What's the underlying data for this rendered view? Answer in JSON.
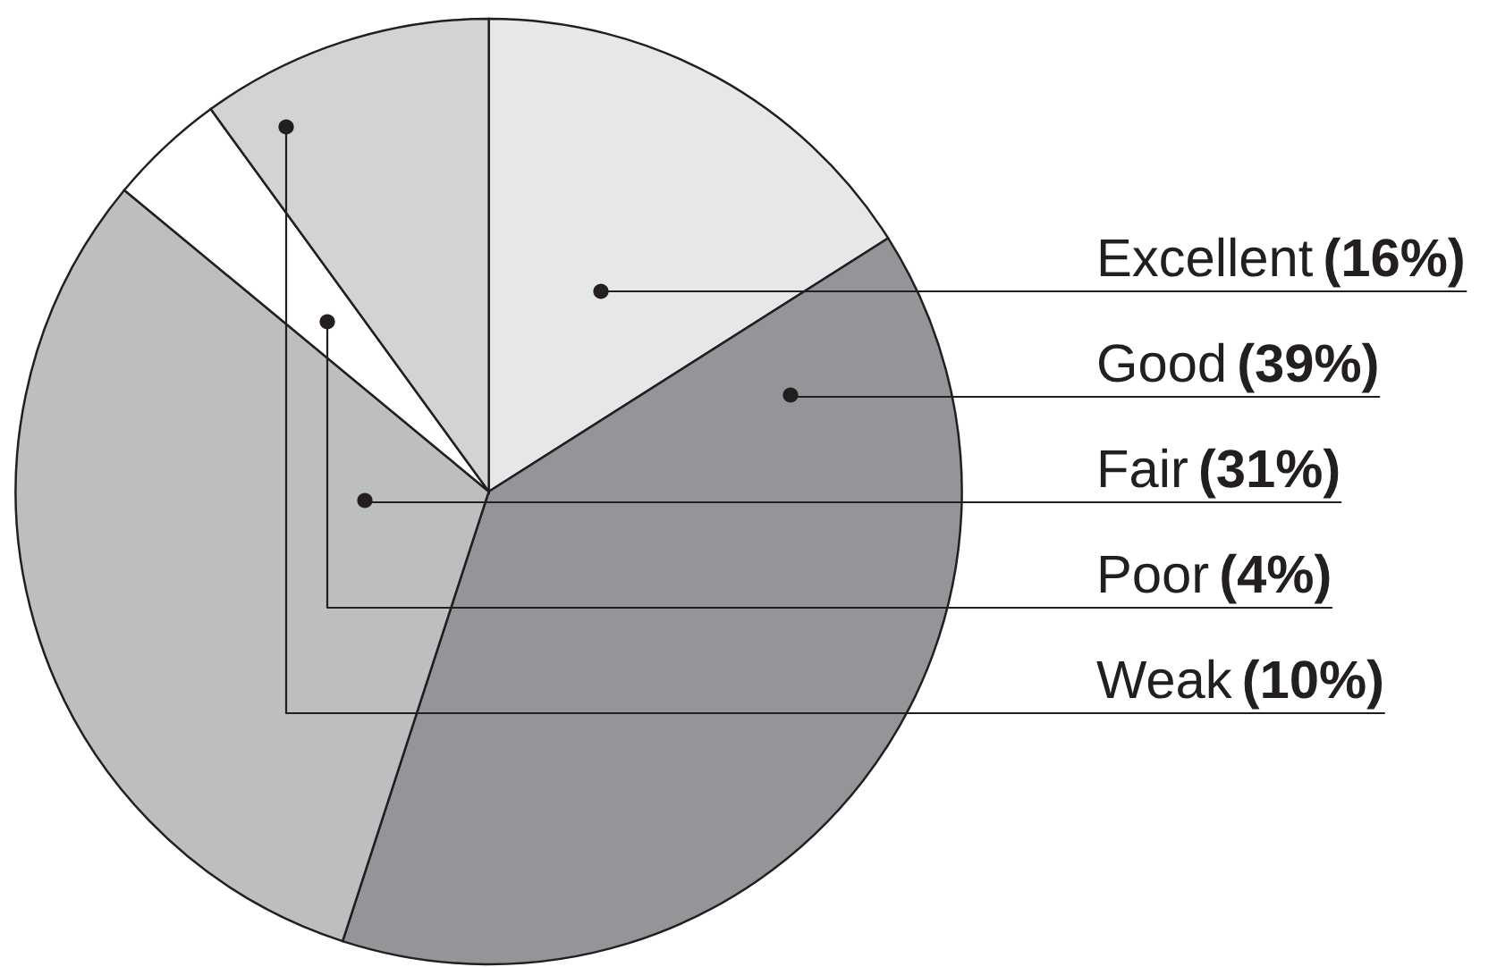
{
  "chart_data": {
    "type": "pie",
    "categories": [
      "Excellent",
      "Good",
      "Fair",
      "Poor",
      "Weak"
    ],
    "values": [
      16,
      39,
      31,
      4,
      10
    ],
    "colors": [
      "#e6e7e8",
      "#939598",
      "#bcbec0",
      "#ffffff",
      "#d1d3d4"
    ],
    "value_labels": [
      "(16%)",
      "(39%)",
      "(31%)",
      "(4%)",
      "(10%)"
    ]
  }
}
